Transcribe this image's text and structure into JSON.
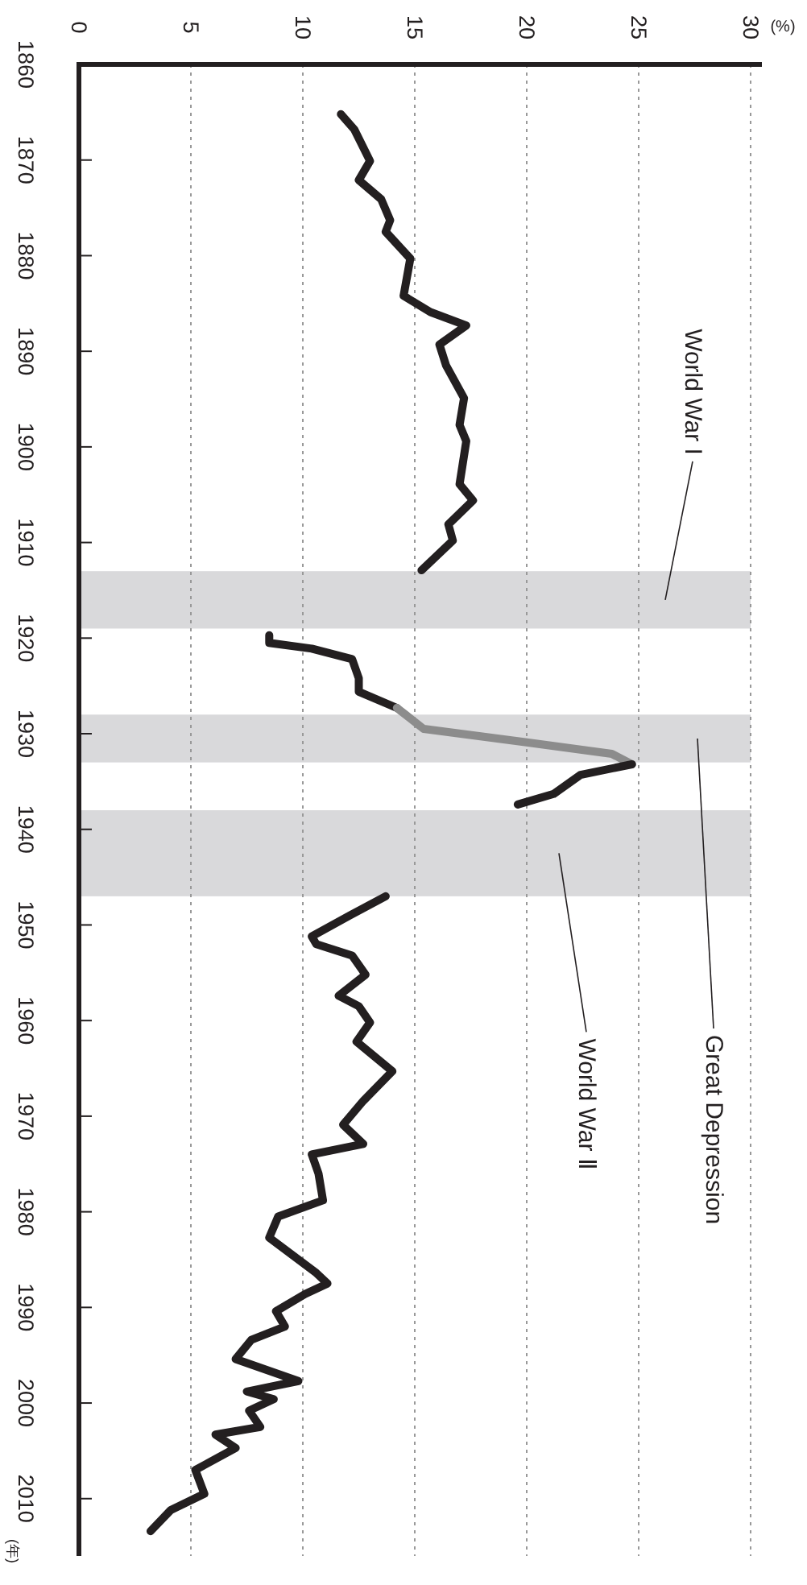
{
  "chart_data": {
    "type": "line",
    "xlabel": "(%)",
    "ylabel": "(年)",
    "xlim": [
      0,
      30
    ],
    "ylim": [
      2016,
      1860
    ],
    "xticks": [
      0,
      5,
      10,
      15,
      20,
      25,
      30
    ],
    "yticks": [
      1860,
      1870,
      1880,
      1890,
      1900,
      1910,
      1920,
      1930,
      1940,
      1950,
      1960,
      1970,
      1980,
      1990,
      2000,
      2010
    ],
    "grid": "x",
    "line_style": "solid",
    "series": [
      {
        "color": "#231f20",
        "values": [
          1865.2,
          1866.8,
          1870.1,
          1872.1,
          1874.1,
          1876.3,
          1877.5,
          1880.3,
          1884.2,
          1885.9,
          1887.3,
          1889.3,
          1891.5,
          1894.9,
          1897.7,
          1899.4,
          1903.9,
          1905.6,
          1908.1,
          1909.8,
          1912.9
        ],
        "x": [
          11.7,
          12.3,
          13.0,
          12.5,
          13.5,
          13.9,
          13.7,
          14.8,
          14.5,
          15.7,
          17.3,
          16.1,
          16.4,
          17.2,
          17.0,
          17.3,
          17.0,
          17.6,
          16.5,
          16.7,
          15.3
        ]
      },
      {
        "color": "#231f20",
        "values": [
          1919.7,
          1920.5,
          1921.1,
          1922.2,
          1924.2,
          1925.6,
          1927.3
        ],
        "x": [
          8.5,
          8.5,
          10.4,
          12.2,
          12.5,
          12.5,
          14.2
        ]
      },
      {
        "color": "#8c8c8c",
        "values": [
          1927.3,
          1929.5,
          1930.9,
          1932.1,
          1933.2
        ],
        "x": [
          14.2,
          15.4,
          20.0,
          23.8,
          24.7
        ]
      },
      {
        "color": "#231f20",
        "values": [
          1933.2,
          1934.3,
          1936.3,
          1937.4
        ],
        "x": [
          24.7,
          22.4,
          21.2,
          19.6
        ]
      },
      {
        "color": "#231f20",
        "values": [
          1947.0,
          1949.0,
          1951.2,
          1952.0,
          1953.2,
          1955.2,
          1957.4,
          1958.5,
          1960.2,
          1962.2,
          1965.3,
          1968.4,
          1970.9,
          1972.9,
          1974.0,
          1976.0,
          1978.8,
          1980.5,
          1982.7,
          1986.4,
          1987.5,
          1988.6,
          1990.4,
          1992.0,
          1993.4,
          1995.4,
          1997.7,
          1998.8,
          1999.6,
          2000.8,
          2002.5,
          2003.3,
          2004.7,
          2007.0,
          2009.5,
          2011.2,
          2013.4
        ],
        "x": [
          13.7,
          12.1,
          10.4,
          10.6,
          12.2,
          12.8,
          11.6,
          12.5,
          13.0,
          12.4,
          14.0,
          12.7,
          11.8,
          12.7,
          10.4,
          10.7,
          10.9,
          8.9,
          8.5,
          10.6,
          11.1,
          10.1,
          8.8,
          9.2,
          7.7,
          7.0,
          9.8,
          7.5,
          8.7,
          7.6,
          8.1,
          6.1,
          7.0,
          5.2,
          5.6,
          4.1,
          3.2
        ]
      }
    ],
    "bands": [
      {
        "axis": "y",
        "from": 1913,
        "to": 1919,
        "color": "#d9d9db"
      },
      {
        "axis": "y",
        "from": 1928,
        "to": 1933,
        "color": "#d9d9db"
      },
      {
        "axis": "y",
        "from": 1938,
        "to": 1947,
        "color": "#d9d9db"
      }
    ],
    "annotations": [
      "World War I",
      "Great Depression",
      "World War Ⅱ"
    ]
  }
}
